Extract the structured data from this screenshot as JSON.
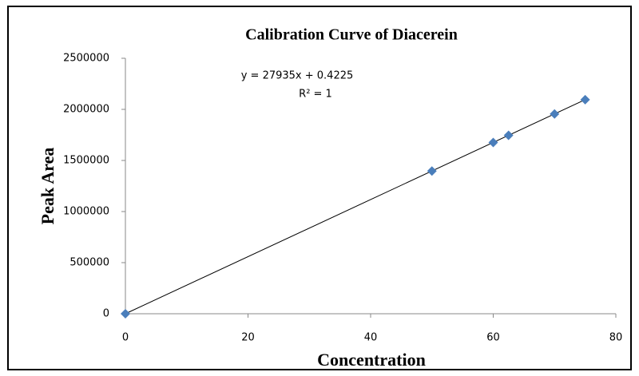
{
  "chart_data": {
    "type": "scatter",
    "title": "Calibration Curve of Diacerein",
    "x_label": "Concentration",
    "y_label": "Peak Area",
    "annotations": [
      "y = 27935x + 0.4225",
      "R² = 1"
    ],
    "series": [
      {
        "name": "Peak Area",
        "color": "#4a7ebb",
        "x": [
          0,
          50,
          60,
          62.5,
          70,
          75
        ],
        "values": [
          0,
          1396750,
          1676100,
          1745938,
          1955450,
          2095125
        ]
      }
    ],
    "trendline_color": "#000000",
    "xlim": [
      0,
      80
    ],
    "xticks": [
      0,
      20,
      40,
      60,
      80
    ],
    "ylim": [
      0,
      2500000
    ],
    "yticks": [
      0,
      500000,
      1000000,
      1500000,
      2000000,
      2500000
    ]
  }
}
